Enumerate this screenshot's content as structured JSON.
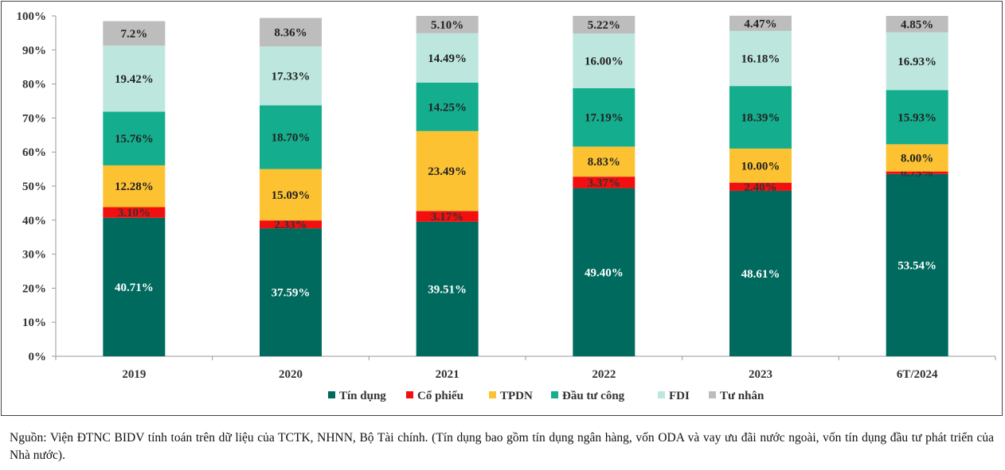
{
  "chart_data": {
    "type": "bar",
    "stacked": true,
    "percent": true,
    "categories": [
      "2019",
      "2020",
      "2021",
      "2022",
      "2023",
      "6T/2024"
    ],
    "ylim": [
      0,
      100
    ],
    "yticks": [
      "0%",
      "10%",
      "20%",
      "30%",
      "40%",
      "50%",
      "60%",
      "70%",
      "80%",
      "90%",
      "100%"
    ],
    "grid": false,
    "legend_position": "bottom",
    "series": [
      {
        "name": "Tín dụng",
        "color": "#006A5E",
        "label_color": "#ffffff",
        "values": [
          40.71,
          37.59,
          39.51,
          49.4,
          48.61,
          53.54
        ],
        "labels": [
          "40.71%",
          "37.59%",
          "39.51%",
          "49.40%",
          "48.61%",
          "53.54%"
        ]
      },
      {
        "name": "Cổ phiếu",
        "color": "#F20F10",
        "label_color": "#333333",
        "values": [
          3.1,
          2.33,
          3.17,
          3.37,
          2.4,
          0.75
        ],
        "labels": [
          "3.10%",
          "2.33%",
          "3.17%",
          "3.37%",
          "2.40%",
          "0.75%"
        ]
      },
      {
        "name": "TPDN",
        "color": "#FCC232",
        "label_color": "#222222",
        "values": [
          12.28,
          15.09,
          23.49,
          8.83,
          10.0,
          8.0
        ],
        "labels": [
          "12.28%",
          "15.09%",
          "23.49%",
          "8.83%",
          "10.00%",
          "8.00%"
        ]
      },
      {
        "name": "Đầu tư công",
        "color": "#14AD8E",
        "label_color": "#222222",
        "values": [
          15.76,
          18.7,
          14.25,
          17.19,
          18.39,
          15.93
        ],
        "labels": [
          "15.76%",
          "18.70%",
          "14.25%",
          "17.19%",
          "18.39%",
          "15.93%"
        ]
      },
      {
        "name": "FDI",
        "color": "#BDE7DE",
        "label_color": "#222222",
        "values": [
          19.42,
          17.33,
          14.49,
          16.0,
          16.18,
          16.93
        ],
        "labels": [
          "19.42%",
          "17.33%",
          "14.49%",
          "16.00%",
          "16.18%",
          "16.93%"
        ]
      },
      {
        "name": "Tư nhân",
        "color": "#BDBDBD",
        "label_color": "#222222",
        "values": [
          7.2,
          8.36,
          5.1,
          5.22,
          4.47,
          4.85
        ],
        "labels": [
          "7.2%",
          "8.36%",
          "5.10%",
          "5.22%",
          "4.47%",
          "4.85%"
        ]
      }
    ]
  },
  "source_note": "Nguồn: Viện ĐTNC BIDV tính toán trên dữ liệu của TCTK, NHNN, Bộ Tài chính. (Tín dụng bao gồm tín dụng ngân hàng, vốn ODA và vay ưu đãi nước ngoài, vốn tín dụng đầu tư phát triển của Nhà nước)."
}
